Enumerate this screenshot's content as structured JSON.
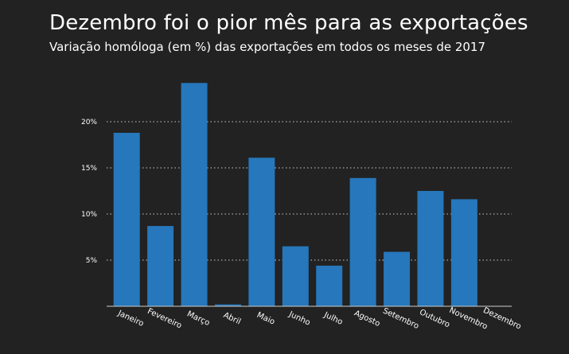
{
  "header": {
    "title": "Dezembro foi o pior mês para as exportações",
    "subtitle": "Variação homóloga (em %) das exportações em todos os meses de 2017"
  },
  "colors": {
    "background": "#222222",
    "bar": "#2677bb",
    "grid": "#cccccc",
    "text": "#ffffff"
  },
  "chart_data": {
    "type": "bar",
    "categories": [
      "Janeiro",
      "Fevereiro",
      "Março",
      "Abril",
      "Maio",
      "Junho",
      "Julho",
      "Agosto",
      "Setembro",
      "Outubro",
      "Novembro",
      "Dezembro"
    ],
    "values": [
      18.8,
      8.7,
      24.2,
      0.2,
      16.1,
      6.5,
      4.4,
      13.9,
      5.9,
      12.5,
      11.6,
      0
    ],
    "yticks": [
      5,
      10,
      15,
      20
    ],
    "ytick_labels": [
      "5%",
      "10%",
      "15%",
      "20%"
    ],
    "ylim": [
      0,
      26
    ],
    "grid": true,
    "title": "Dezembro foi o pior mês para as exportações",
    "subtitle": "Variação homóloga (em %) das exportações em todos os meses de 2017"
  }
}
